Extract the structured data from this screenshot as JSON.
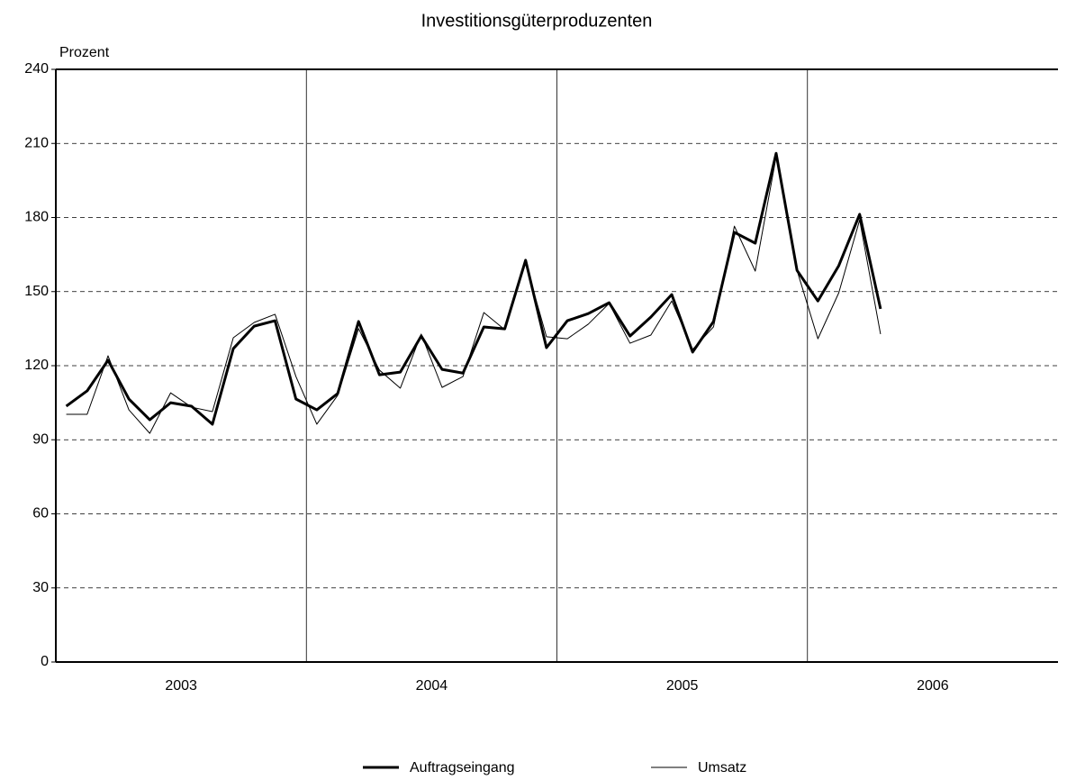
{
  "chart_data": {
    "type": "line",
    "title": "Investitionsgüterproduzenten",
    "y_label": "Prozent",
    "categories": [
      "2003",
      null,
      null,
      null,
      null,
      null,
      null,
      null,
      null,
      null,
      null,
      null,
      "2004",
      null,
      null,
      null,
      null,
      null,
      null,
      null,
      null,
      null,
      null,
      null,
      "2005",
      null,
      null,
      null,
      null,
      null,
      null,
      null,
      null,
      null,
      null,
      null,
      "2006",
      null,
      null,
      null,
      null,
      null,
      null,
      null,
      null,
      null,
      null,
      null
    ],
    "series": [
      {
        "name": "Auftragseingang",
        "color": "#000000",
        "width": 3,
        "values": [
          103.6,
          109.8,
          122.2,
          106.5,
          98.1,
          105.0,
          103.6,
          96.3,
          126.9,
          136.0,
          138.2,
          106.5,
          102.1,
          108.7,
          137.9,
          116.3,
          117.4,
          132.0,
          118.5,
          117.0,
          135.7,
          134.9,
          162.7,
          127.3,
          138.2,
          141.1,
          145.5,
          132.0,
          139.7,
          148.8,
          125.5,
          137.9,
          174.0,
          169.6,
          206.0,
          158.6,
          146.2,
          160.5,
          181.3,
          143.0,
          null,
          null,
          null,
          null,
          null,
          null,
          null,
          null
        ]
      },
      {
        "name": "Umsatz",
        "color": "#000000",
        "width": 1,
        "values": [
          100.3,
          100.3,
          124.0,
          102.1,
          92.6,
          109.0,
          103.2,
          101.4,
          131.3,
          137.5,
          140.8,
          115.6,
          96.3,
          108.0,
          135.0,
          118.2,
          110.9,
          132.8,
          111.2,
          115.6,
          141.5,
          134.6,
          161.6,
          131.7,
          130.9,
          136.8,
          145.2,
          129.1,
          132.4,
          146.2,
          126.6,
          135.7,
          176.5,
          158.3,
          204.6,
          158.6,
          130.9,
          149.5,
          179.0,
          132.8,
          null,
          null,
          null,
          null,
          null,
          null,
          null,
          null
        ]
      }
    ],
    "ylim": [
      0,
      240
    ],
    "yticks": [
      0,
      30,
      60,
      90,
      120,
      150,
      180,
      210,
      240
    ],
    "grid": true
  }
}
